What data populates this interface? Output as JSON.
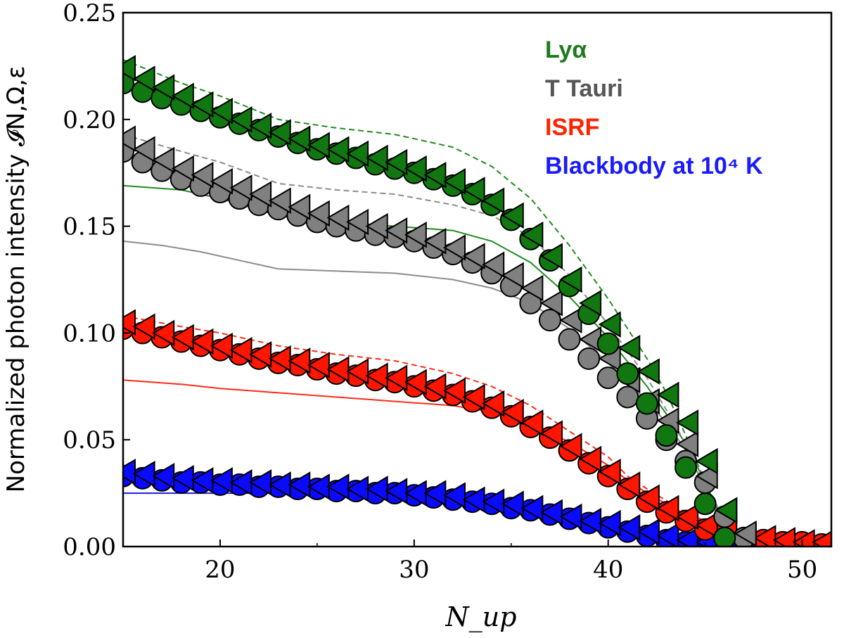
{
  "chart_data": {
    "type": "line",
    "title": "",
    "xlabel": "N_up",
    "ylabel": "Normalized photon intensity 𝓘N,Ω,ε",
    "xlim": [
      15,
      51.5
    ],
    "ylim": [
      0,
      0.25
    ],
    "xticks": [
      20,
      30,
      40,
      50
    ],
    "yticks": [
      0.0,
      0.05,
      0.1,
      0.15,
      0.2,
      0.25
    ],
    "xtick_labels": [
      "20",
      "30",
      "40",
      "50"
    ],
    "ytick_labels": [
      "0.00",
      "0.05",
      "0.10",
      "0.15",
      "0.20",
      "0.25"
    ],
    "legend": {
      "position": "top-right",
      "entries": [
        {
          "label": "Lyα",
          "color": "#1f7a1f"
        },
        {
          "label": "T Tauri",
          "color": "#555555"
        },
        {
          "label": "ISRF",
          "color": "#ff2200"
        },
        {
          "label": "Blackbody at 10⁴ K",
          "color": "#1a1aff"
        }
      ]
    },
    "series": [
      {
        "name": "Lyα",
        "color": "#117711",
        "line_color": "#1f8c1f",
        "x": [
          15,
          16,
          17,
          18,
          19,
          20,
          21,
          22,
          23,
          24,
          25,
          26,
          27,
          28,
          29,
          30,
          31,
          32,
          33,
          34,
          35,
          36,
          37,
          38,
          39,
          40,
          41,
          42,
          43,
          44,
          45,
          46
        ],
        "circles": [
          0.217,
          0.213,
          0.21,
          0.207,
          0.204,
          0.201,
          0.198,
          0.195,
          0.192,
          0.189,
          0.186,
          0.184,
          0.182,
          0.179,
          0.177,
          0.175,
          0.172,
          0.169,
          0.165,
          0.16,
          0.153,
          0.144,
          0.134,
          0.122,
          0.109,
          0.095,
          0.081,
          0.067,
          0.052,
          0.037,
          0.02,
          0.004
        ],
        "triangles": [
          0.224,
          0.219,
          0.215,
          0.211,
          0.207,
          0.204,
          0.2,
          0.197,
          0.194,
          0.191,
          0.188,
          0.186,
          0.184,
          0.182,
          0.18,
          0.177,
          0.174,
          0.171,
          0.167,
          0.162,
          0.155,
          0.146,
          0.136,
          0.125,
          0.114,
          0.104,
          0.093,
          0.082,
          0.071,
          0.058,
          0.04,
          0.017
        ],
        "dashed": [
          [
            15,
            0.228
          ],
          [
            18,
            0.217
          ],
          [
            20,
            0.211
          ],
          [
            23,
            0.2
          ],
          [
            26,
            0.196
          ],
          [
            29,
            0.193
          ],
          [
            32,
            0.187
          ],
          [
            34,
            0.178
          ],
          [
            36,
            0.163
          ],
          [
            38,
            0.141
          ],
          [
            40,
            0.116
          ],
          [
            42,
            0.088
          ],
          [
            43,
            0.072
          ],
          [
            44,
            0.052
          ],
          [
            45,
            0.03
          ],
          [
            46,
            0.008
          ],
          [
            46.6,
            0.0
          ]
        ],
        "solid": [
          [
            15,
            0.169
          ],
          [
            18,
            0.167
          ],
          [
            20,
            0.163
          ],
          [
            23,
            0.155
          ],
          [
            26,
            0.152
          ],
          [
            29,
            0.15
          ],
          [
            32,
            0.148
          ],
          [
            34,
            0.143
          ],
          [
            36,
            0.133
          ],
          [
            38,
            0.117
          ],
          [
            40,
            0.098
          ],
          [
            42,
            0.075
          ],
          [
            43,
            0.062
          ],
          [
            44,
            0.048
          ],
          [
            45,
            0.03
          ],
          [
            46,
            0.01
          ],
          [
            46.5,
            0.0
          ]
        ]
      },
      {
        "name": "T Tauri",
        "color": "#808080",
        "line_color": "#8c8c8c",
        "x": [
          15,
          16,
          17,
          18,
          19,
          20,
          21,
          22,
          23,
          24,
          25,
          26,
          27,
          28,
          29,
          30,
          31,
          32,
          33,
          34,
          35,
          36,
          37,
          38,
          39,
          40,
          41,
          42,
          43,
          44,
          45,
          46,
          47
        ],
        "circles": [
          0.185,
          0.18,
          0.176,
          0.172,
          0.169,
          0.166,
          0.163,
          0.16,
          0.158,
          0.155,
          0.152,
          0.15,
          0.148,
          0.146,
          0.145,
          0.143,
          0.14,
          0.137,
          0.133,
          0.128,
          0.122,
          0.114,
          0.106,
          0.097,
          0.088,
          0.079,
          0.07,
          0.06,
          0.05,
          0.04,
          0.03,
          0.014,
          0.004
        ],
        "triangles": [
          0.191,
          0.186,
          0.181,
          0.177,
          0.174,
          0.171,
          0.168,
          0.165,
          0.162,
          0.159,
          0.156,
          0.154,
          0.152,
          0.15,
          0.148,
          0.146,
          0.143,
          0.14,
          0.136,
          0.132,
          0.127,
          0.121,
          0.114,
          0.106,
          0.097,
          0.088,
          0.078,
          0.068,
          0.059,
          0.048,
          0.033,
          0.017,
          0.006
        ],
        "dashed": [
          [
            15,
            0.193
          ],
          [
            18,
            0.185
          ],
          [
            20,
            0.18
          ],
          [
            23,
            0.17
          ],
          [
            26,
            0.167
          ],
          [
            29,
            0.165
          ],
          [
            32,
            0.16
          ],
          [
            34,
            0.155
          ],
          [
            36,
            0.145
          ],
          [
            38,
            0.127
          ],
          [
            40,
            0.104
          ],
          [
            42,
            0.079
          ],
          [
            43,
            0.064
          ],
          [
            44,
            0.048
          ],
          [
            45,
            0.03
          ],
          [
            46,
            0.012
          ],
          [
            46.8,
            0.0
          ]
        ],
        "solid": [
          [
            15,
            0.143
          ],
          [
            17,
            0.141
          ],
          [
            19,
            0.138
          ],
          [
            21,
            0.134
          ],
          [
            23,
            0.13
          ],
          [
            26,
            0.129
          ],
          [
            29,
            0.128
          ],
          [
            32,
            0.125
          ],
          [
            34,
            0.121
          ],
          [
            36,
            0.114
          ],
          [
            38,
            0.102
          ],
          [
            40,
            0.086
          ],
          [
            42,
            0.068
          ],
          [
            43,
            0.058
          ],
          [
            44,
            0.045
          ],
          [
            45,
            0.028
          ],
          [
            46,
            0.009
          ],
          [
            46.6,
            0.0
          ]
        ]
      },
      {
        "name": "ISRF",
        "color": "#ff1500",
        "line_color": "#ff2a1a",
        "x": [
          15,
          16,
          17,
          18,
          19,
          20,
          21,
          22,
          23,
          24,
          25,
          26,
          27,
          28,
          29,
          30,
          31,
          32,
          33,
          34,
          35,
          36,
          37,
          38,
          39,
          40,
          41,
          42,
          43,
          44,
          45,
          46,
          47,
          48,
          49,
          50,
          51
        ],
        "circles": [
          0.102,
          0.1,
          0.098,
          0.096,
          0.094,
          0.092,
          0.09,
          0.088,
          0.086,
          0.085,
          0.083,
          0.081,
          0.08,
          0.078,
          0.077,
          0.075,
          0.073,
          0.071,
          0.068,
          0.065,
          0.061,
          0.056,
          0.051,
          0.045,
          0.039,
          0.033,
          0.027,
          0.021,
          0.016,
          0.012,
          0.008,
          0.006,
          0.004,
          0.003,
          0.002,
          0.002,
          0.001
        ],
        "triangles": [
          0.105,
          0.103,
          0.1,
          0.098,
          0.096,
          0.094,
          0.092,
          0.09,
          0.088,
          0.087,
          0.085,
          0.083,
          0.082,
          0.08,
          0.079,
          0.077,
          0.075,
          0.073,
          0.07,
          0.067,
          0.063,
          0.058,
          0.053,
          0.047,
          0.041,
          0.035,
          0.029,
          0.023,
          0.018,
          0.014,
          0.01,
          0.007,
          0.005,
          0.004,
          0.003,
          0.002,
          0.002
        ],
        "dashed": [
          [
            15,
            0.108
          ],
          [
            18,
            0.103
          ],
          [
            20,
            0.1
          ],
          [
            23,
            0.094
          ],
          [
            26,
            0.09
          ],
          [
            29,
            0.087
          ],
          [
            32,
            0.081
          ],
          [
            34,
            0.075
          ],
          [
            36,
            0.066
          ],
          [
            38,
            0.054
          ],
          [
            40,
            0.042
          ],
          [
            41,
            0.033
          ],
          [
            42,
            0.027
          ],
          [
            44,
            0.016
          ],
          [
            46,
            0.008
          ],
          [
            48,
            0.004
          ],
          [
            50,
            0.002
          ],
          [
            51.5,
            0.001
          ]
        ],
        "solid": [
          [
            15,
            0.078
          ],
          [
            18,
            0.076
          ],
          [
            20,
            0.074
          ],
          [
            23,
            0.072
          ],
          [
            26,
            0.07
          ],
          [
            29,
            0.068
          ],
          [
            32,
            0.066
          ],
          [
            34,
            0.063
          ],
          [
            36,
            0.057
          ],
          [
            38,
            0.049
          ],
          [
            40,
            0.038
          ],
          [
            41,
            0.031
          ],
          [
            42,
            0.025
          ],
          [
            44,
            0.015
          ],
          [
            46,
            0.008
          ],
          [
            48,
            0.004
          ],
          [
            50,
            0.002
          ],
          [
            51.5,
            0.001
          ]
        ]
      },
      {
        "name": "Blackbody at 10⁴ K",
        "color": "#0a0aff",
        "line_color": "#1a1ae6",
        "x": [
          15,
          16,
          17,
          18,
          19,
          20,
          21,
          22,
          23,
          24,
          25,
          26,
          27,
          28,
          29,
          30,
          31,
          32,
          33,
          34,
          35,
          36,
          37,
          38,
          39,
          40,
          41,
          42,
          43,
          44,
          45,
          46
        ],
        "circles": [
          0.033,
          0.032,
          0.031,
          0.03,
          0.03,
          0.029,
          0.029,
          0.028,
          0.028,
          0.027,
          0.027,
          0.026,
          0.026,
          0.025,
          0.025,
          0.024,
          0.023,
          0.022,
          0.021,
          0.02,
          0.018,
          0.017,
          0.015,
          0.013,
          0.011,
          0.009,
          0.007,
          0.005,
          0.003,
          0.002,
          0.001,
          0.0
        ],
        "triangles": [
          0.035,
          0.034,
          0.033,
          0.032,
          0.031,
          0.031,
          0.03,
          0.03,
          0.029,
          0.029,
          0.028,
          0.028,
          0.027,
          0.027,
          0.026,
          0.025,
          0.025,
          0.024,
          0.022,
          0.021,
          0.02,
          0.018,
          0.016,
          0.014,
          0.012,
          0.011,
          0.009,
          0.007,
          0.005,
          0.003,
          0.002,
          0.001
        ],
        "dashed": [],
        "solid": [
          [
            15,
            0.025
          ],
          [
            18,
            0.025
          ],
          [
            20,
            0.025
          ],
          [
            23,
            0.025
          ],
          [
            26,
            0.024
          ],
          [
            29,
            0.023
          ],
          [
            32,
            0.021
          ],
          [
            34,
            0.019
          ],
          [
            36,
            0.016
          ],
          [
            38,
            0.013
          ],
          [
            40,
            0.009
          ],
          [
            42,
            0.005
          ],
          [
            44,
            0.002
          ],
          [
            46,
            0.0
          ]
        ]
      }
    ]
  }
}
